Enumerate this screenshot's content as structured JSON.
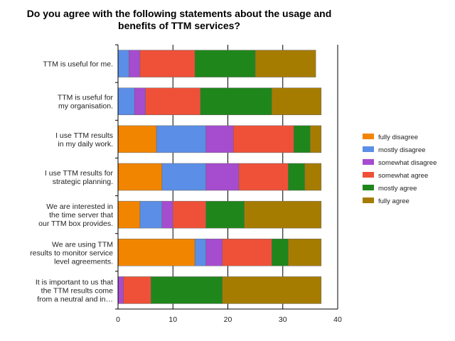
{
  "chart_data": {
    "type": "bar",
    "orientation": "horizontal",
    "stacked": true,
    "title_lines": [
      "Do you agree with the following statements about the usage and",
      "benefits of TTM services?"
    ],
    "xlabel": "",
    "ylabel": "",
    "xlim": [
      0,
      40
    ],
    "xticks": [
      0,
      10,
      20,
      30,
      40
    ],
    "grid": true,
    "legend_position": "right",
    "categories": [
      [
        "TTM is useful for me."
      ],
      [
        "TTM is useful for",
        "my organisation."
      ],
      [
        "I use TTM results",
        "in my daily work."
      ],
      [
        "I use TTM results for",
        "strategic planning."
      ],
      [
        "We are interested in",
        "the time server that",
        "our TTM box provides."
      ],
      [
        "We are using TTM",
        "results to monitor service",
        "level agreements."
      ],
      [
        "It is important to us that",
        "the TTM results come",
        "from a neutral and in…"
      ]
    ],
    "series": [
      {
        "name": "fully disagree",
        "color": "#f28500",
        "values": [
          0,
          0,
          7,
          8,
          4,
          14,
          0
        ]
      },
      {
        "name": "mostly disagree",
        "color": "#5b8ee6",
        "values": [
          2,
          3,
          9,
          8,
          4,
          2,
          0
        ]
      },
      {
        "name": "somewhat disagree",
        "color": "#a64ccf",
        "values": [
          2,
          2,
          5,
          6,
          2,
          3,
          1
        ]
      },
      {
        "name": "somewhat agree",
        "color": "#ef5138",
        "values": [
          10,
          10,
          11,
          9,
          6,
          9,
          5
        ]
      },
      {
        "name": "mostly agree",
        "color": "#1f861b",
        "values": [
          11,
          13,
          3,
          3,
          7,
          3,
          13
        ]
      },
      {
        "name": "fully agree",
        "color": "#a67c00",
        "values": [
          11,
          9,
          2,
          3,
          14,
          6,
          18
        ]
      }
    ]
  }
}
